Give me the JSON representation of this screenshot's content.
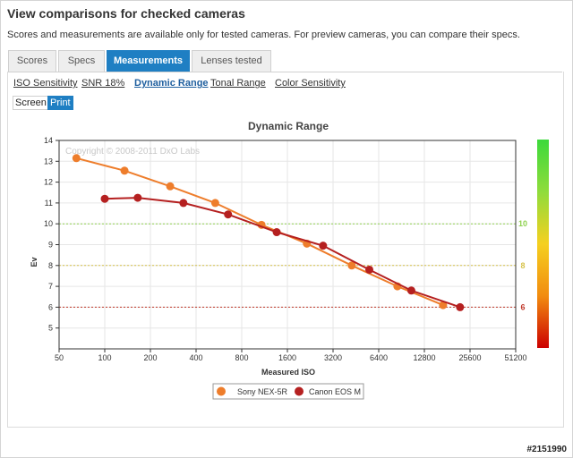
{
  "page": {
    "title": "View comparisons for checked cameras",
    "subtitle": "Scores and measurements are available only for tested cameras. For preview cameras, you can compare their specs."
  },
  "tabs": [
    {
      "label": "Scores",
      "active": false
    },
    {
      "label": "Specs",
      "active": false
    },
    {
      "label": "Measurements",
      "active": true
    },
    {
      "label": "Lenses tested",
      "active": false
    }
  ],
  "subnav": [
    {
      "label": "ISO Sensitivity",
      "active": false
    },
    {
      "label": "SNR 18%",
      "active": false
    },
    {
      "label": "Dynamic Range",
      "active": true
    },
    {
      "label": "Tonal Range",
      "active": false
    },
    {
      "label": "Color Sensitivity",
      "active": false
    }
  ],
  "toggle": {
    "screen": "Screen",
    "print": "Print",
    "selected": "Print"
  },
  "watermark_id": "#2151990",
  "chart_data": {
    "type": "line",
    "title": "Dynamic Range",
    "xlabel": "Measured ISO",
    "ylabel": "Ev",
    "copyright": "Copyright © 2008-2011 DxO Labs",
    "x_scale": "log2",
    "x_ticks": [
      "50",
      "100",
      "200",
      "400",
      "800",
      "1600",
      "3200",
      "6400",
      "12800",
      "25600",
      "51200"
    ],
    "y_ticks": [
      "5",
      "6",
      "7",
      "8",
      "9",
      "10",
      "11",
      "12",
      "13",
      "14"
    ],
    "xlim": [
      50,
      51200
    ],
    "ylim": [
      4,
      14
    ],
    "reference_lines": [
      {
        "y": 10,
        "label": "10",
        "color": "#8fd14f"
      },
      {
        "y": 8,
        "label": "8",
        "color": "#d6c24a"
      },
      {
        "y": 6,
        "label": "6",
        "color": "#c0392b"
      }
    ],
    "colorbar": {
      "colors": [
        "#cc0000",
        "#f28c0f",
        "#f5d020",
        "#8fdc3c",
        "#3cd93c"
      ]
    },
    "legend_position": "bottom-center",
    "series": [
      {
        "name": "Sony NEX-5R",
        "color": "#ee7d2b",
        "x": [
          65,
          135,
          270,
          535,
          1080,
          2150,
          4250,
          8500,
          17000
        ],
        "y": [
          13.15,
          12.55,
          11.8,
          11.0,
          9.95,
          9.05,
          8.0,
          7.0,
          6.1
        ]
      },
      {
        "name": "Canon EOS M",
        "color": "#b52020",
        "x": [
          100,
          165,
          330,
          650,
          1360,
          2750,
          5550,
          10500,
          22000
        ],
        "y": [
          11.2,
          11.25,
          11.0,
          10.45,
          9.6,
          8.95,
          7.8,
          6.8,
          6.0
        ]
      }
    ]
  }
}
